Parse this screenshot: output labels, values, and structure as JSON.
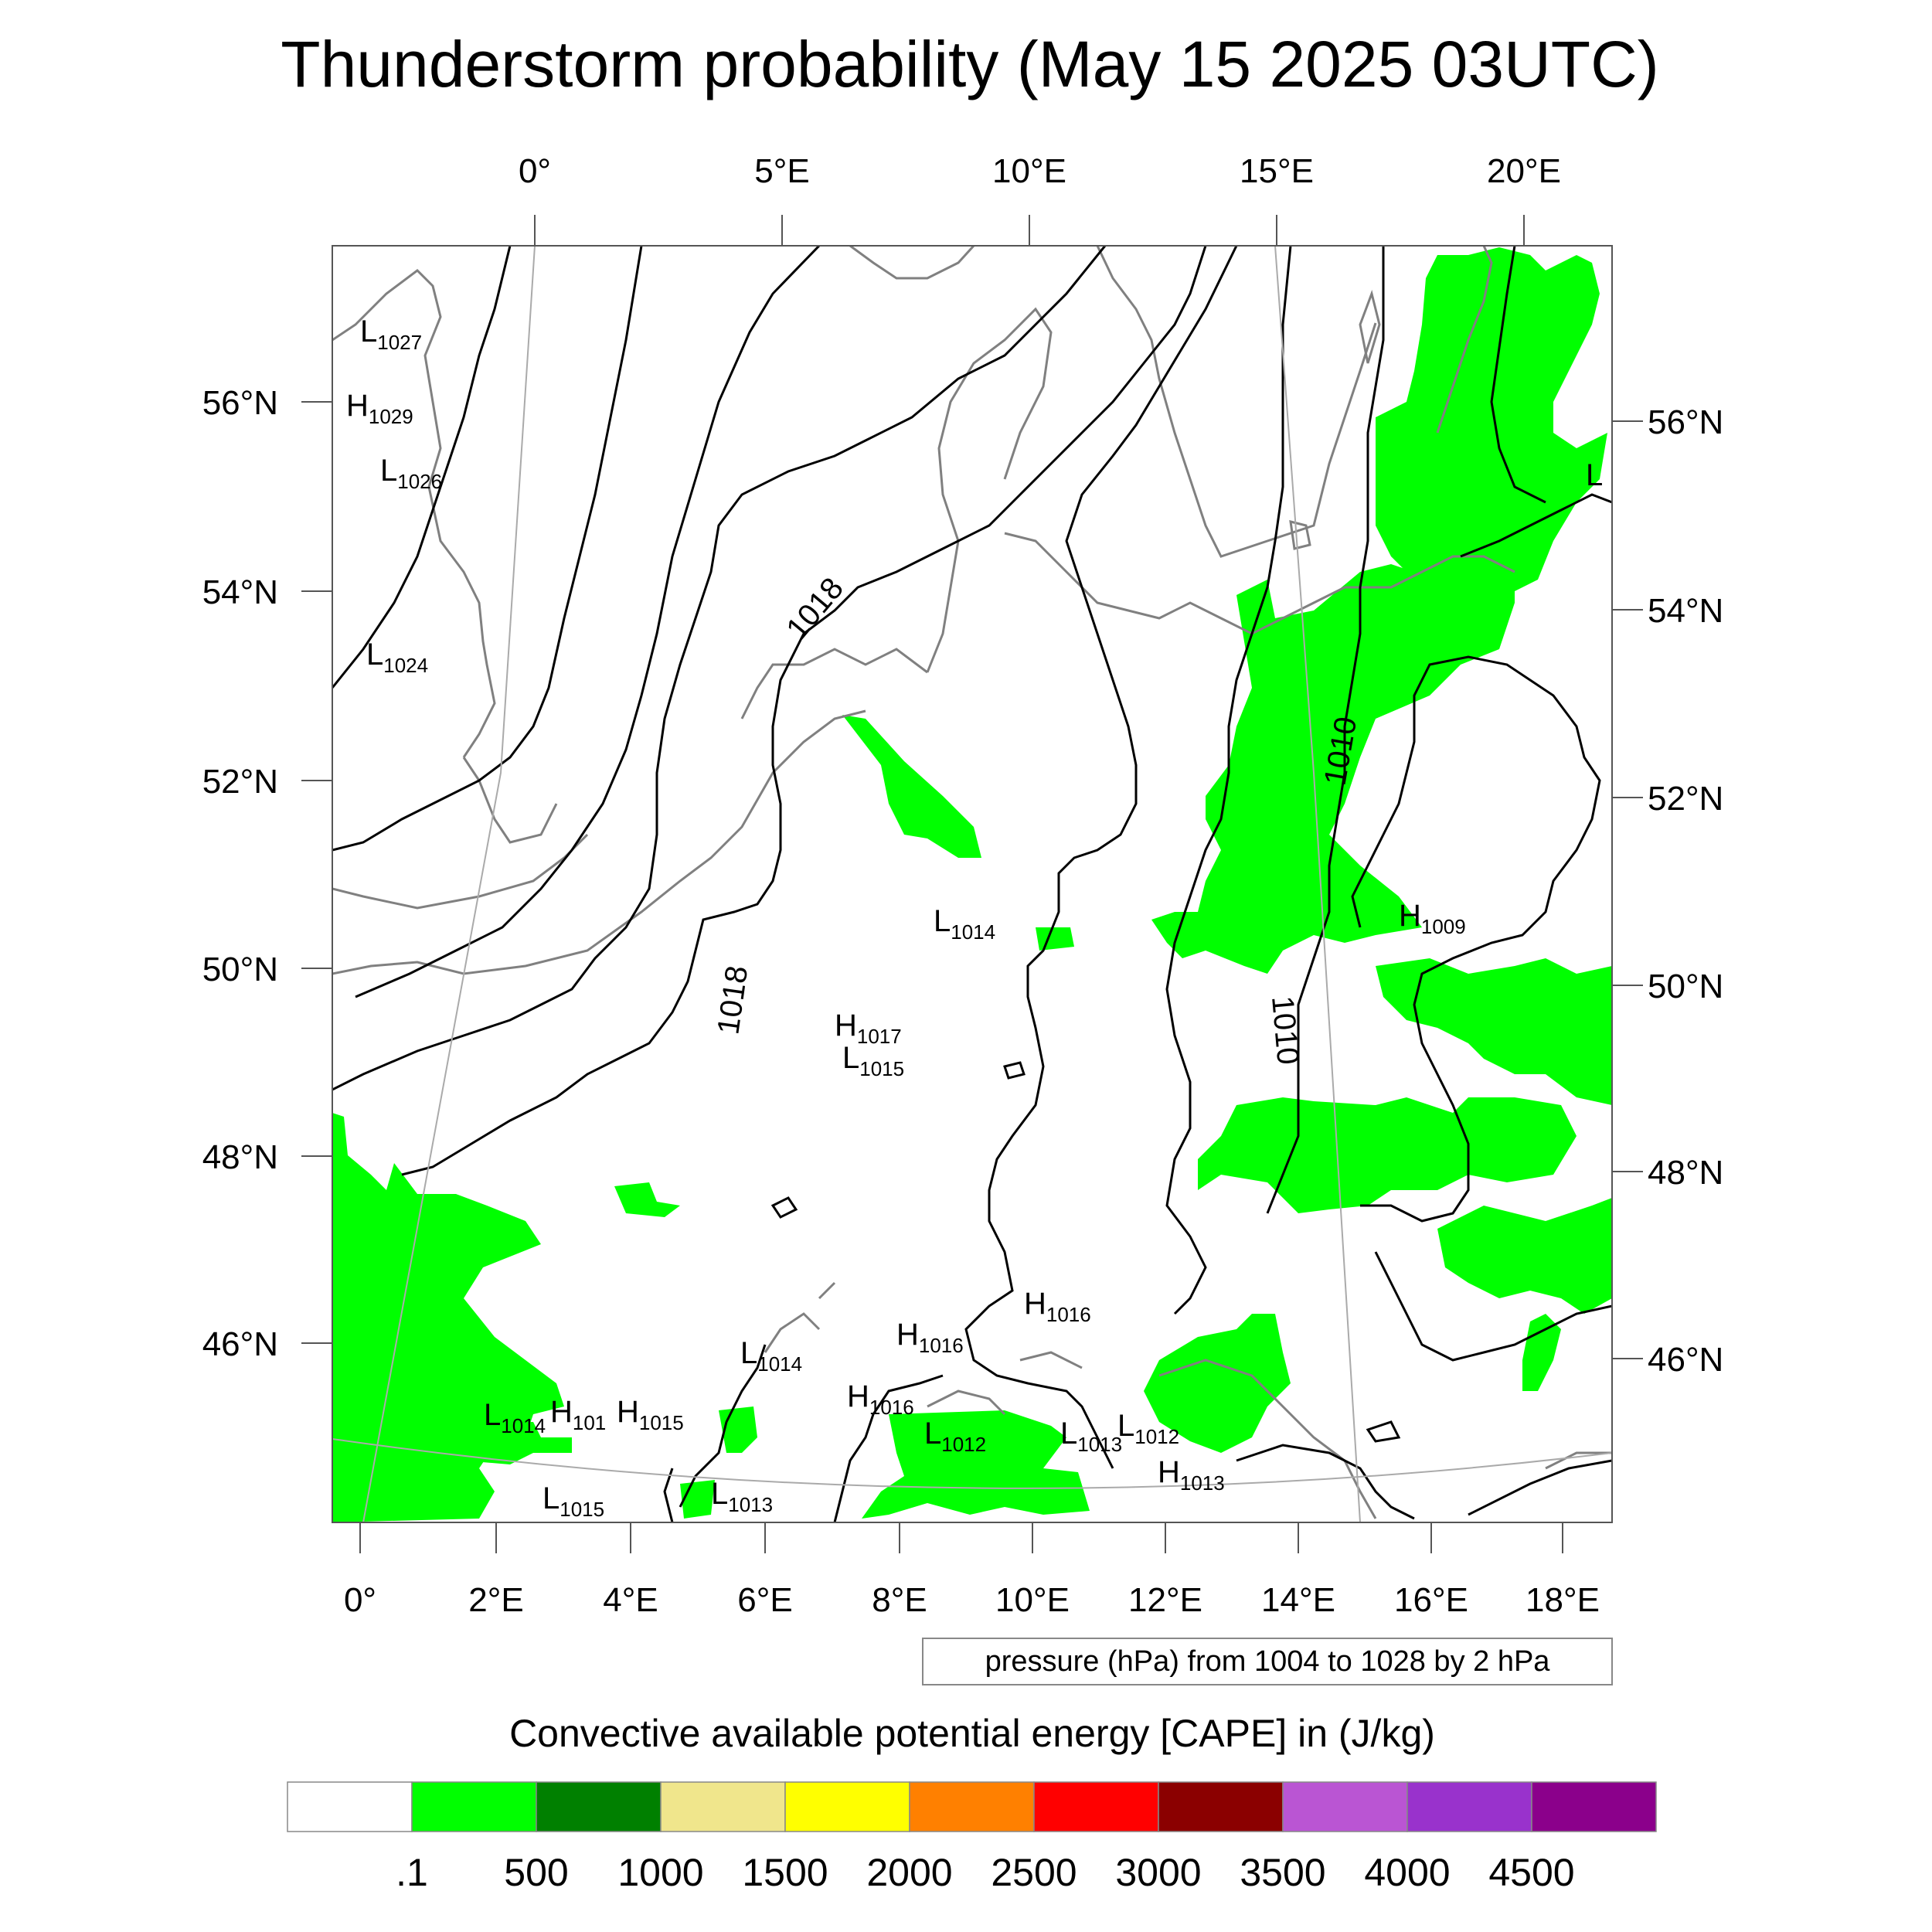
{
  "title": "Thunderstorm probability (May 15 2025 03UTC)",
  "top_lon_labels": [
    "0°",
    "5°E",
    "10°E",
    "15°E",
    "20°E"
  ],
  "bottom_lon_labels": [
    "0°",
    "2°E",
    "4°E",
    "6°E",
    "8°E",
    "10°E",
    "12°E",
    "14°E",
    "16°E",
    "18°E"
  ],
  "left_lat_labels": [
    "56°N",
    "54°N",
    "52°N",
    "50°N",
    "48°N",
    "46°N"
  ],
  "right_lat_labels": [
    "56°N",
    "54°N",
    "52°N",
    "50°N",
    "48°N",
    "46°N"
  ],
  "contour_info": "pressure (hPa) from 1004 to 1028 by 2 hPa",
  "isobar_labels": [
    "1018",
    "1018",
    "1010",
    "1010"
  ],
  "pressure_centers": [
    {
      "kind": "L",
      "value": "1027"
    },
    {
      "kind": "H",
      "value": "1029"
    },
    {
      "kind": "L",
      "value": "1026"
    },
    {
      "kind": "L",
      "value": "1024"
    },
    {
      "kind": "L",
      "value": "1014"
    },
    {
      "kind": "H",
      "value": "1017"
    },
    {
      "kind": "L",
      "value": "1015"
    },
    {
      "kind": "H",
      "value": "1009"
    },
    {
      "kind": "H",
      "value": "1016"
    },
    {
      "kind": "H",
      "value": "1016"
    },
    {
      "kind": "L",
      "value": "1014"
    },
    {
      "kind": "H",
      "value": "1016"
    },
    {
      "kind": "L",
      "value": "1012"
    },
    {
      "kind": "L",
      "value": "1013"
    },
    {
      "kind": "L",
      "value": "1012"
    },
    {
      "kind": "H",
      "value": "1013"
    },
    {
      "kind": "L",
      "value": "1014"
    },
    {
      "kind": "H",
      "value": "101"
    },
    {
      "kind": "H",
      "value": "1015"
    },
    {
      "kind": "L",
      "value": "1015"
    },
    {
      "kind": "L",
      "value": "1013"
    },
    {
      "kind": "L",
      "value": ""
    }
  ],
  "colorbar": {
    "title": "Convective available potential energy [CAPE] in (J/kg)",
    "colors": [
      "#ffffff",
      "#00ff00",
      "#008000",
      "#f0e68c",
      "#ffff00",
      "#ff8000",
      "#ff0000",
      "#8b0000",
      "#ba55d3",
      "#9932cc",
      "#8b008b"
    ],
    "labels": [
      ".1",
      "500",
      "1000",
      "1500",
      "2000",
      "2500",
      "3000",
      "3500",
      "4000",
      "4500"
    ]
  },
  "styles": {
    "cape_fill": "#00ff00",
    "coastline": "#808080",
    "isobar": "#000000",
    "graticule": "#aaaaaa"
  }
}
